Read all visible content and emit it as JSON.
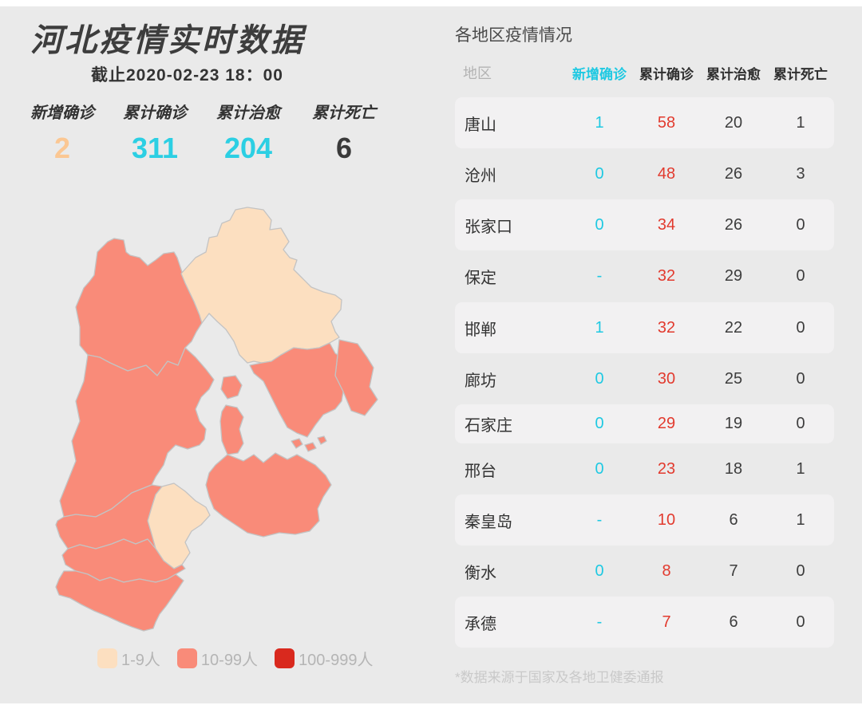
{
  "page": {
    "title": "河北疫情实时数据",
    "subtitle": "截止2020-02-23 18：00"
  },
  "stats": [
    {
      "label": "新增确诊",
      "value": "2",
      "color": "#fbc793"
    },
    {
      "label": "累计确诊",
      "value": "311",
      "color": "#2ccfe3"
    },
    {
      "label": "累计治愈",
      "value": "204",
      "color": "#2ccfe3"
    },
    {
      "label": "累计死亡",
      "value": "6",
      "color": "#3a3a3a"
    }
  ],
  "legend": [
    {
      "label": "1-9人",
      "color": "#fcdfc0"
    },
    {
      "label": "10-99人",
      "color": "#f98b79"
    },
    {
      "label": "100-999人",
      "color": "#d9291e"
    }
  ],
  "map": {
    "regions": [
      {
        "id": "zhangjiakou",
        "label": "张家口",
        "band": "10-99人"
      },
      {
        "id": "chengde",
        "label": "承德",
        "band": "1-9人"
      },
      {
        "id": "qinhuangdao",
        "label": "秦皇岛",
        "band": "10-99人"
      },
      {
        "id": "tangshan",
        "label": "唐山",
        "band": "10-99人"
      },
      {
        "id": "langfang",
        "label": "廊坊",
        "band": "10-99人"
      },
      {
        "id": "baoding",
        "label": "保定",
        "band": "10-99人"
      },
      {
        "id": "cangzhou",
        "label": "沧州",
        "band": "10-99人"
      },
      {
        "id": "hengshui",
        "label": "衡水",
        "band": "1-9人"
      },
      {
        "id": "shijiazhuang",
        "label": "石家庄",
        "band": "10-99人"
      },
      {
        "id": "xingtai",
        "label": "邢台",
        "band": "10-99人"
      },
      {
        "id": "handan",
        "label": "邯郸",
        "band": "10-99人"
      }
    ]
  },
  "panel": {
    "title": "各地区疫情情况",
    "columns": [
      "地区",
      "新增确诊",
      "累计确诊",
      "累计治愈",
      "累计死亡"
    ],
    "rows": [
      {
        "region": "唐山",
        "new": "1",
        "confirmed": "58",
        "cured": "20",
        "deaths": "1",
        "highlight": true
      },
      {
        "region": "沧州",
        "new": "0",
        "confirmed": "48",
        "cured": "26",
        "deaths": "3",
        "highlight": false
      },
      {
        "region": "张家口",
        "new": "0",
        "confirmed": "34",
        "cured": "26",
        "deaths": "0",
        "highlight": true
      },
      {
        "region": "保定",
        "new": "-",
        "confirmed": "32",
        "cured": "29",
        "deaths": "0",
        "highlight": false
      },
      {
        "region": "邯郸",
        "new": "1",
        "confirmed": "32",
        "cured": "22",
        "deaths": "0",
        "highlight": true
      },
      {
        "region": "廊坊",
        "new": "0",
        "confirmed": "30",
        "cured": "25",
        "deaths": "0",
        "highlight": false
      },
      {
        "region": "石家庄",
        "new": "0",
        "confirmed": "29",
        "cured": "19",
        "deaths": "0",
        "highlight": true
      },
      {
        "region": "邢台",
        "new": "0",
        "confirmed": "23",
        "cured": "18",
        "deaths": "1",
        "highlight": false
      },
      {
        "region": "秦皇岛",
        "new": "-",
        "confirmed": "10",
        "cured": "6",
        "deaths": "1",
        "highlight": true
      },
      {
        "region": "衡水",
        "new": "0",
        "confirmed": "8",
        "cured": "7",
        "deaths": "0",
        "highlight": false
      },
      {
        "region": "承德",
        "new": "-",
        "confirmed": "7",
        "cured": "6",
        "deaths": "0",
        "highlight": true
      }
    ],
    "footnote": "*数据来源于国家及各地卫健委通报"
  },
  "chart_data": [
    {
      "type": "table",
      "title": "各地区疫情情况",
      "columns": [
        "地区",
        "新增确诊",
        "累计确诊",
        "累计治愈",
        "累计死亡"
      ],
      "rows": [
        [
          "唐山",
          "1",
          58,
          20,
          1
        ],
        [
          "沧州",
          "0",
          48,
          26,
          3
        ],
        [
          "张家口",
          "0",
          34,
          26,
          0
        ],
        [
          "保定",
          "-",
          32,
          29,
          0
        ],
        [
          "邯郸",
          "1",
          32,
          22,
          0
        ],
        [
          "廊坊",
          "0",
          30,
          25,
          0
        ],
        [
          "石家庄",
          "0",
          29,
          19,
          0
        ],
        [
          "邢台",
          "0",
          23,
          18,
          1
        ],
        [
          "秦皇岛",
          "-",
          10,
          6,
          1
        ],
        [
          "衡水",
          "0",
          8,
          7,
          0
        ],
        [
          "承德",
          "-",
          7,
          6,
          0
        ]
      ]
    },
    {
      "type": "heatmap",
      "subtype": "choropleth-map",
      "title": "河北疫情实时数据",
      "as_of": "截止2020-02-23 18：00",
      "totals": {
        "新增确诊": 2,
        "累计确诊": 311,
        "累计治愈": 204,
        "累计死亡": 6
      },
      "legend_bins": [
        {
          "label": "1-9人",
          "color": "#fcdfc0"
        },
        {
          "label": "10-99人",
          "color": "#f98b79"
        },
        {
          "label": "100-999人",
          "color": "#d9291e"
        }
      ],
      "regions": [
        {
          "name": "张家口",
          "value": 34,
          "band": "10-99人"
        },
        {
          "name": "承德",
          "value": 7,
          "band": "1-9人"
        },
        {
          "name": "秦皇岛",
          "value": 10,
          "band": "10-99人"
        },
        {
          "name": "唐山",
          "value": 58,
          "band": "10-99人"
        },
        {
          "name": "廊坊",
          "value": 30,
          "band": "10-99人"
        },
        {
          "name": "保定",
          "value": 32,
          "band": "10-99人"
        },
        {
          "name": "沧州",
          "value": 48,
          "band": "10-99人"
        },
        {
          "name": "衡水",
          "value": 8,
          "band": "1-9人"
        },
        {
          "name": "石家庄",
          "value": 29,
          "band": "10-99人"
        },
        {
          "name": "邢台",
          "value": 23,
          "band": "10-99人"
        },
        {
          "name": "邯郸",
          "value": 32,
          "band": "10-99人"
        }
      ]
    }
  ]
}
